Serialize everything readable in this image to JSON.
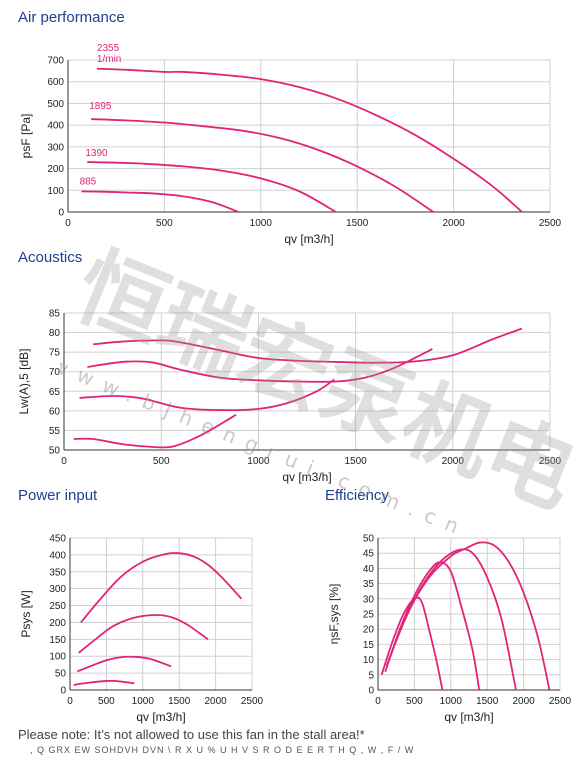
{
  "titles": {
    "air": "Air performance",
    "acoustics": "Acoustics",
    "power": "Power input",
    "efficiency": "Efficiency"
  },
  "note": "Please note: It’s not allowed to use this fan in the stall area!*",
  "note2": ", Q   GRX EW   SOHDVH   DVN  \\ R X U  % U H V  S R O D E E R T H  Q , W , F / W",
  "watermark": {
    "chinese": "恒瑞宏泵机电",
    "latin": "www.bjhengrui.com.cn"
  },
  "colors": {
    "curve": "#e0247a",
    "grid": "#d0d0d0",
    "title": "#1f3f8f"
  },
  "chart_data": [
    {
      "id": "air",
      "type": "line",
      "title": "Air performance",
      "xlabel": "qv [m3/h]",
      "ylabel": "psF [Pa]",
      "xlim": [
        0,
        2500
      ],
      "ylim": [
        0,
        700
      ],
      "xticks": [
        0,
        500,
        1000,
        1500,
        2000,
        2500
      ],
      "yticks": [
        0,
        100,
        200,
        300,
        400,
        500,
        600,
        700
      ],
      "annotations": [
        {
          "text": "2355",
          "x": 150,
          "y": 742
        },
        {
          "text": "1/min",
          "x": 150,
          "y": 690
        },
        {
          "text": "1895",
          "x": 110,
          "y": 475
        },
        {
          "text": "1390",
          "x": 90,
          "y": 258
        },
        {
          "text": "885",
          "x": 60,
          "y": 126
        }
      ],
      "series": [
        {
          "name": "2355",
          "points": [
            [
              150,
              660
            ],
            [
              300,
              655
            ],
            [
              500,
              645
            ],
            [
              600,
              645
            ],
            [
              800,
              632
            ],
            [
              1000,
              612
            ],
            [
              1200,
              575
            ],
            [
              1400,
              520
            ],
            [
              1600,
              445
            ],
            [
              1800,
              355
            ],
            [
              2000,
              245
            ],
            [
              2200,
              120
            ],
            [
              2355,
              0
            ]
          ]
        },
        {
          "name": "1895",
          "points": [
            [
              120,
              428
            ],
            [
              300,
              422
            ],
            [
              500,
              412
            ],
            [
              700,
              395
            ],
            [
              900,
              375
            ],
            [
              1100,
              340
            ],
            [
              1300,
              285
            ],
            [
              1500,
              210
            ],
            [
              1700,
              115
            ],
            [
              1895,
              0
            ]
          ]
        },
        {
          "name": "1390",
          "points": [
            [
              100,
              230
            ],
            [
              250,
              227
            ],
            [
              400,
              222
            ],
            [
              600,
              210
            ],
            [
              800,
              190
            ],
            [
              1000,
              155
            ],
            [
              1200,
              95
            ],
            [
              1390,
              0
            ]
          ]
        },
        {
          "name": "885",
          "points": [
            [
              70,
              95
            ],
            [
              200,
              93
            ],
            [
              300,
              90
            ],
            [
              450,
              85
            ],
            [
              600,
              72
            ],
            [
              750,
              45
            ],
            [
              885,
              0
            ]
          ]
        }
      ]
    },
    {
      "id": "acoustics",
      "type": "line",
      "title": "Acoustics",
      "xlabel": "qv [m3/h]",
      "ylabel": "Lw(A),5 [dB]",
      "xlim": [
        0,
        2500
      ],
      "ylim": [
        50,
        85
      ],
      "xticks": [
        0,
        500,
        1000,
        1500,
        2000,
        2500
      ],
      "yticks": [
        50,
        55,
        60,
        65,
        70,
        75,
        80,
        85
      ],
      "series": [
        {
          "name": "2355",
          "points": [
            [
              150,
              77
            ],
            [
              300,
              77.7
            ],
            [
              500,
              78
            ],
            [
              600,
              77.5
            ],
            [
              800,
              75.5
            ],
            [
              1000,
              73.5
            ],
            [
              1200,
              72.8
            ],
            [
              1400,
              72.5
            ],
            [
              1600,
              72.3
            ],
            [
              1800,
              72.6
            ],
            [
              2000,
              74.2
            ],
            [
              2200,
              78.2
            ],
            [
              2355,
              81
            ]
          ]
        },
        {
          "name": "1895",
          "points": [
            [
              120,
              71.2
            ],
            [
              300,
              72.5
            ],
            [
              450,
              72.4
            ],
            [
              600,
              70.5
            ],
            [
              800,
              68.5
            ],
            [
              1000,
              67.8
            ],
            [
              1200,
              67.5
            ],
            [
              1400,
              67.5
            ],
            [
              1550,
              68.5
            ],
            [
              1700,
              71
            ],
            [
              1895,
              75.8
            ]
          ]
        },
        {
          "name": "1390",
          "points": [
            [
              80,
              63.3
            ],
            [
              250,
              63.8
            ],
            [
              400,
              63.2
            ],
            [
              600,
              60.8
            ],
            [
              800,
              60.2
            ],
            [
              1000,
              60.5
            ],
            [
              1150,
              62
            ],
            [
              1300,
              65
            ],
            [
              1390,
              68
            ]
          ]
        },
        {
          "name": "885",
          "points": [
            [
              50,
              52.8
            ],
            [
              150,
              52.8
            ],
            [
              300,
              51.5
            ],
            [
              450,
              50.8
            ],
            [
              550,
              50.8
            ],
            [
              650,
              52.5
            ],
            [
              750,
              55
            ],
            [
              885,
              59
            ]
          ]
        }
      ]
    },
    {
      "id": "power",
      "type": "line",
      "title": "Power input",
      "xlabel": "qv [m3/h]",
      "ylabel": "Psys [W]",
      "xlim": [
        0,
        2500
      ],
      "ylim": [
        0,
        450
      ],
      "xticks": [
        0,
        500,
        1000,
        1500,
        2000,
        2500
      ],
      "yticks": [
        0,
        50,
        100,
        150,
        200,
        250,
        300,
        350,
        400,
        450
      ],
      "series": [
        {
          "name": "2355",
          "points": [
            [
              150,
              200
            ],
            [
              400,
              265
            ],
            [
              700,
              335
            ],
            [
              1000,
              380
            ],
            [
              1300,
              402
            ],
            [
              1500,
              405
            ],
            [
              1700,
              395
            ],
            [
              1900,
              370
            ],
            [
              2100,
              330
            ],
            [
              2355,
              270
            ]
          ]
        },
        {
          "name": "1895",
          "points": [
            [
              120,
              110
            ],
            [
              350,
              150
            ],
            [
              600,
              190
            ],
            [
              900,
              215
            ],
            [
              1200,
              222
            ],
            [
              1400,
              215
            ],
            [
              1600,
              195
            ],
            [
              1800,
              165
            ],
            [
              1895,
              150
            ]
          ]
        },
        {
          "name": "1390",
          "points": [
            [
              100,
              55
            ],
            [
              300,
              72
            ],
            [
              500,
              88
            ],
            [
              700,
              97
            ],
            [
              900,
              98
            ],
            [
              1100,
              92
            ],
            [
              1390,
              70
            ]
          ]
        },
        {
          "name": "885",
          "points": [
            [
              50,
              15
            ],
            [
              200,
              20
            ],
            [
              400,
              25
            ],
            [
              600,
              27
            ],
            [
              885,
              20
            ]
          ]
        }
      ]
    },
    {
      "id": "efficiency",
      "type": "line",
      "title": "Efficiency",
      "xlabel": "qv [m3/h]",
      "ylabel": "ηsF,sys [%]",
      "xlim": [
        0,
        2500
      ],
      "ylim": [
        0,
        50
      ],
      "xticks": [
        0,
        500,
        1000,
        1500,
        2000,
        2500
      ],
      "yticks": [
        0,
        5,
        10,
        15,
        20,
        25,
        30,
        35,
        40,
        45,
        50
      ],
      "series": [
        {
          "name": "2355",
          "points": [
            [
              150,
              10
            ],
            [
              400,
              25
            ],
            [
              700,
              37
            ],
            [
              1000,
              44
            ],
            [
              1200,
              46.5
            ],
            [
              1400,
              48.5
            ],
            [
              1600,
              47.5
            ],
            [
              1800,
              42
            ],
            [
              2000,
              32
            ],
            [
              2200,
              17
            ],
            [
              2355,
              0
            ]
          ]
        },
        {
          "name": "1895",
          "points": [
            [
              120,
              8
            ],
            [
              350,
              22
            ],
            [
              600,
              34
            ],
            [
              850,
              42
            ],
            [
              1100,
              46
            ],
            [
              1300,
              45
            ],
            [
              1500,
              37
            ],
            [
              1700,
              23
            ],
            [
              1895,
              0
            ]
          ]
        },
        {
          "name": "1390",
          "points": [
            [
              100,
              6
            ],
            [
              300,
              20
            ],
            [
              500,
              31
            ],
            [
              700,
              39
            ],
            [
              850,
              42
            ],
            [
              1000,
              39
            ],
            [
              1150,
              27
            ],
            [
              1300,
              13
            ],
            [
              1390,
              0
            ]
          ]
        },
        {
          "name": "885",
          "points": [
            [
              50,
              5
            ],
            [
              200,
              16
            ],
            [
              350,
              25
            ],
            [
              500,
              30
            ],
            [
              600,
              29
            ],
            [
              700,
              20
            ],
            [
              800,
              10
            ],
            [
              885,
              0
            ]
          ]
        }
      ]
    }
  ]
}
